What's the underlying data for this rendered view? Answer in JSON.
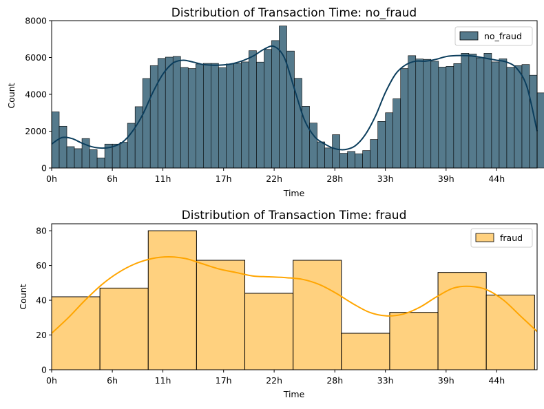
{
  "chart_data": [
    {
      "type": "bar",
      "title": "Distribution of Transaction Time: no_fraud",
      "xlabel": "Time",
      "ylabel": "Count",
      "legend": "top-right",
      "series_name": "no_fraud",
      "color": "#557a8c",
      "kde_color": "#0b3d5c",
      "x_ticks": [
        "0h",
        "6h",
        "11h",
        "17h",
        "22h",
        "28h",
        "33h",
        "39h",
        "44h"
      ],
      "x_range_hours": [
        0,
        48
      ],
      "ylim": [
        0,
        8000
      ],
      "y_ticks": [
        "0",
        "2000",
        "4000",
        "6000",
        "8000"
      ],
      "bin_width_hours": 0.75,
      "values": [
        3050,
        2270,
        1160,
        1050,
        1600,
        1000,
        550,
        1300,
        1300,
        1400,
        2430,
        3330,
        4860,
        5560,
        5950,
        6020,
        6060,
        5460,
        5400,
        5650,
        5680,
        5680,
        5450,
        5650,
        5680,
        5760,
        6370,
        5750,
        6440,
        6920,
        7710,
        6350,
        4870,
        3350,
        2440,
        1420,
        1090,
        1810,
        800,
        900,
        770,
        950,
        1550,
        2530,
        3000,
        3760,
        5400,
        6100,
        5920,
        5900,
        5800,
        5480,
        5520,
        5670,
        6230,
        6190,
        5980,
        6230,
        5760,
        5930,
        5470,
        5560,
        5620,
        5040,
        4080,
        3320
      ],
      "kde": [
        1300,
        1650,
        1600,
        1350,
        1150,
        1080,
        1150,
        1400,
        2000,
        2900,
        4100,
        5100,
        5700,
        5850,
        5750,
        5620,
        5580,
        5600,
        5680,
        5850,
        6100,
        6450,
        6600,
        6000,
        4300,
        2600,
        1700,
        1300,
        1050,
        1000,
        1200,
        1800,
        2800,
        4100,
        5100,
        5600,
        5800,
        5800,
        5900,
        6050,
        6100,
        6100,
        6050,
        5950,
        5850,
        5750,
        5400,
        4400,
        2000
      ]
    },
    {
      "type": "bar",
      "title": "Distribution of Transaction Time: fraud",
      "xlabel": "Time",
      "ylabel": "Count",
      "legend": "top-right",
      "series_name": "fraud",
      "color": "#ffd17f",
      "kde_color": "#ffa500",
      "x_ticks": [
        "0h",
        "6h",
        "11h",
        "17h",
        "22h",
        "28h",
        "33h",
        "39h",
        "44h"
      ],
      "x_range_hours": [
        0,
        48
      ],
      "ylim": [
        0,
        84
      ],
      "y_ticks": [
        "0",
        "20",
        "40",
        "60",
        "80"
      ],
      "bin_width_hours": 4.775,
      "values": [
        42,
        47,
        80,
        63,
        44,
        63,
        21,
        33,
        56,
        43
      ],
      "kde": [
        21,
        30,
        40,
        49,
        56,
        61,
        64,
        65,
        64,
        61,
        58,
        56,
        54,
        53.5,
        53,
        52,
        49,
        44,
        38,
        33,
        31,
        32,
        36,
        42,
        47,
        48,
        46,
        40,
        31,
        22
      ]
    }
  ]
}
